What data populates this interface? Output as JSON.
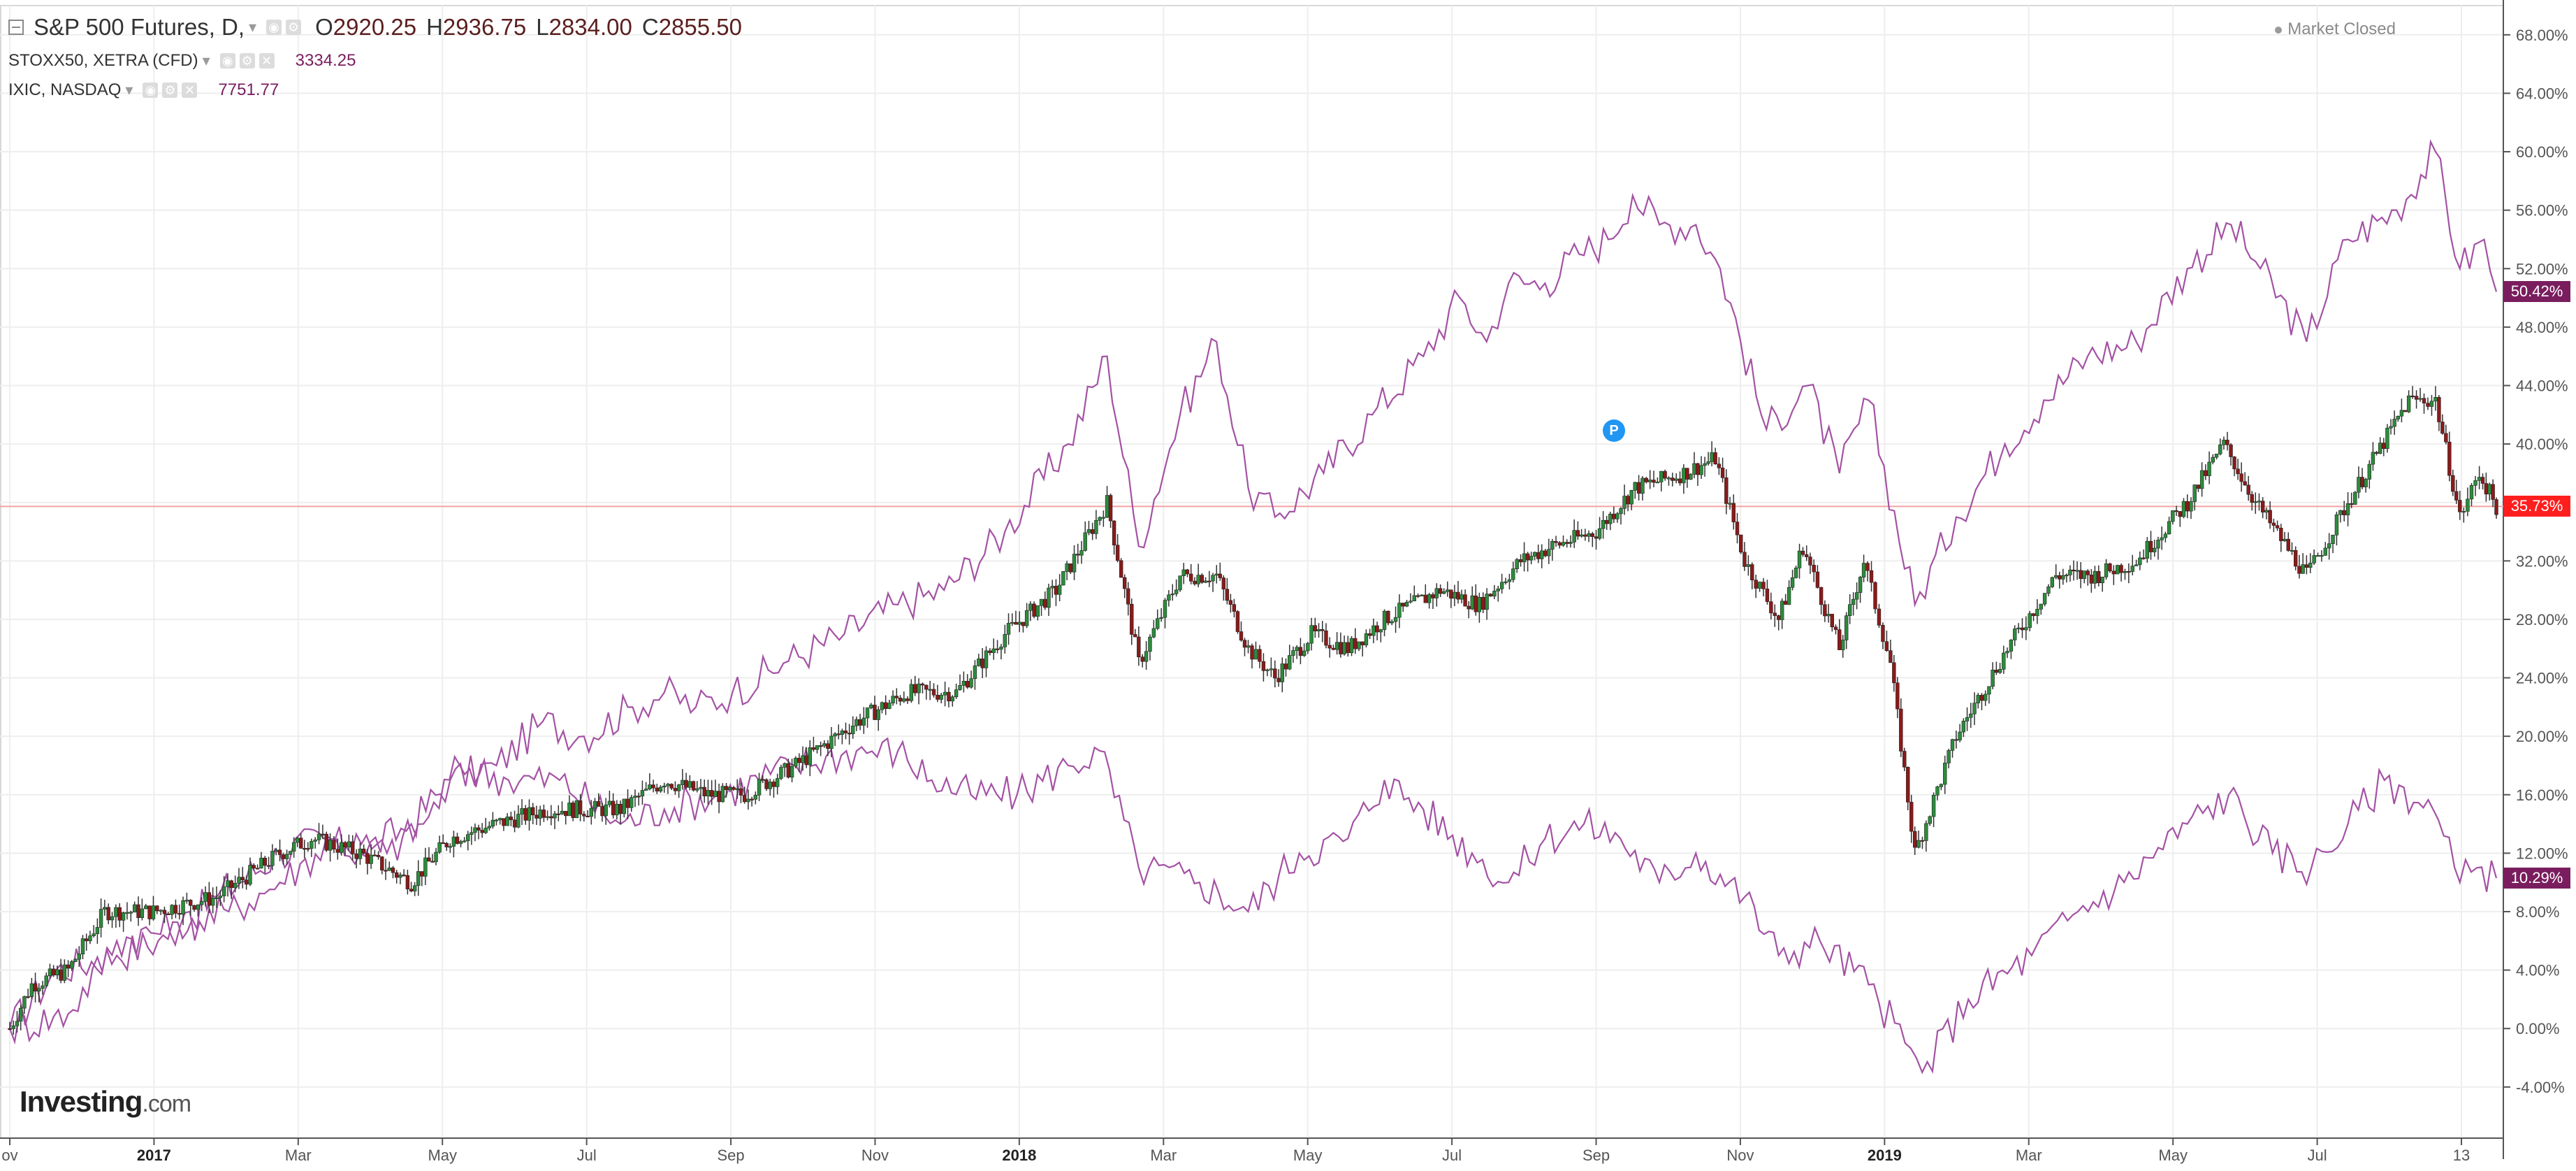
{
  "header": {
    "main": {
      "symbol": "S&P 500 Futures, D,",
      "o_label": "O",
      "o": "2920.25",
      "h_label": "H",
      "h": "2936.75",
      "l_label": "L",
      "l": "2834.00",
      "c_label": "C",
      "c": "2855.50"
    },
    "compare1": {
      "symbol": "STOXX50, XETRA (CFD)",
      "value": "3334.25"
    },
    "compare2": {
      "symbol": "IXIC, NASDAQ",
      "value": "7751.77"
    }
  },
  "status": "Market Closed",
  "logo": {
    "name": "Investing",
    "domain": ".com"
  },
  "event_marker": "P",
  "last_value_tags": [
    {
      "label": "50.42%",
      "color": "#7a1d5e"
    },
    {
      "label": "35.73%",
      "color": "#ff1e1e"
    },
    {
      "label": "10.29%",
      "color": "#7a1d5e"
    }
  ],
  "colors": {
    "up": "#2c8c3c",
    "down": "#8b1a1a",
    "compare": "#a452a4",
    "grid": "#eeeeee",
    "last_price_line": "#f4a2a2"
  },
  "chart_data": {
    "type": "line",
    "candlestick_series": "S&P 500 Futures",
    "ylabel_unit": "%",
    "y_ticks": [
      "68.00%",
      "64.00%",
      "60.00%",
      "56.00%",
      "52.00%",
      "48.00%",
      "44.00%",
      "40.00%",
      "36.00%",
      "32.00%",
      "28.00%",
      "24.00%",
      "20.00%",
      "16.00%",
      "12.00%",
      "8.00%",
      "4.00%",
      "0.00%",
      "-4.00%"
    ],
    "ylim": [
      -7.5,
      70
    ],
    "x_ticks": [
      "ov",
      "2017",
      "Mar",
      "May",
      "Jul",
      "Sep",
      "Nov",
      "2018",
      "Mar",
      "May",
      "Jul",
      "Sep",
      "Nov",
      "2019",
      "Mar",
      "May",
      "Jul",
      "13"
    ],
    "x_tick_bold": [
      "2017",
      "2018",
      "2019"
    ],
    "x_range": [
      "2016-11-01",
      "2019-08-20"
    ],
    "grid": true,
    "series": [
      {
        "name": "IXIC, NASDAQ",
        "points": [
          [
            "2016-11-01",
            0
          ],
          [
            "2016-11-20",
            4
          ],
          [
            "2016-12-15",
            5
          ],
          [
            "2017-01-01",
            6
          ],
          [
            "2017-01-25",
            9
          ],
          [
            "2017-02-20",
            12
          ],
          [
            "2017-03-10",
            13
          ],
          [
            "2017-03-25",
            12
          ],
          [
            "2017-04-15",
            14
          ],
          [
            "2017-05-01",
            17
          ],
          [
            "2017-05-20",
            18
          ],
          [
            "2017-06-08",
            21
          ],
          [
            "2017-06-25",
            20
          ],
          [
            "2017-07-15",
            22
          ],
          [
            "2017-07-28",
            23
          ],
          [
            "2017-08-10",
            22
          ],
          [
            "2017-08-25",
            23
          ],
          [
            "2017-09-15",
            25
          ],
          [
            "2017-10-10",
            27
          ],
          [
            "2017-11-01",
            29
          ],
          [
            "2017-11-20",
            30
          ],
          [
            "2017-12-15",
            34
          ],
          [
            "2018-01-10",
            40
          ],
          [
            "2018-01-26",
            46
          ],
          [
            "2018-02-08",
            33
          ],
          [
            "2018-02-25",
            42
          ],
          [
            "2018-03-12",
            47
          ],
          [
            "2018-03-25",
            37
          ],
          [
            "2018-04-05",
            35
          ],
          [
            "2018-04-25",
            38
          ],
          [
            "2018-05-15",
            42
          ],
          [
            "2018-06-05",
            46
          ],
          [
            "2018-06-20",
            50
          ],
          [
            "2018-07-01",
            47
          ],
          [
            "2018-07-10",
            51
          ],
          [
            "2018-07-25",
            51
          ],
          [
            "2018-08-08",
            53
          ],
          [
            "2018-08-20",
            54
          ],
          [
            "2018-08-30",
            57
          ],
          [
            "2018-09-10",
            55
          ],
          [
            "2018-09-25",
            55
          ],
          [
            "2018-10-05",
            52
          ],
          [
            "2018-10-24",
            41
          ],
          [
            "2018-11-10",
            44
          ],
          [
            "2018-11-23",
            38
          ],
          [
            "2018-12-05",
            43
          ],
          [
            "2018-12-24",
            29
          ],
          [
            "2019-01-10",
            35
          ],
          [
            "2019-01-30",
            40
          ],
          [
            "2019-02-15",
            43
          ],
          [
            "2019-03-05",
            46
          ],
          [
            "2019-03-25",
            47
          ],
          [
            "2019-04-15",
            52
          ],
          [
            "2019-05-03",
            55
          ],
          [
            "2019-05-15",
            52
          ],
          [
            "2019-06-03",
            47
          ],
          [
            "2019-06-20",
            54
          ],
          [
            "2019-07-10",
            56
          ],
          [
            "2019-07-26",
            60
          ],
          [
            "2019-08-05",
            52
          ],
          [
            "2019-08-15",
            54
          ],
          [
            "2019-08-20",
            50.42
          ]
        ]
      },
      {
        "name": "STOXX50, XETRA (CFD)",
        "points": [
          [
            "2016-11-01",
            0
          ],
          [
            "2016-11-25",
            1
          ],
          [
            "2016-12-15",
            6
          ],
          [
            "2017-01-10",
            7
          ],
          [
            "2017-01-30",
            8
          ],
          [
            "2017-02-20",
            10
          ],
          [
            "2017-03-15",
            13
          ],
          [
            "2017-04-05",
            12
          ],
          [
            "2017-04-20",
            14
          ],
          [
            "2017-05-05",
            18
          ],
          [
            "2017-05-25",
            17
          ],
          [
            "2017-06-15",
            17
          ],
          [
            "2017-07-10",
            14
          ],
          [
            "2017-07-28",
            15
          ],
          [
            "2017-08-20",
            16
          ],
          [
            "2017-09-20",
            18
          ],
          [
            "2017-10-15",
            19
          ],
          [
            "2017-11-01",
            19
          ],
          [
            "2017-11-15",
            17
          ],
          [
            "2017-12-01",
            16
          ],
          [
            "2017-12-20",
            16
          ],
          [
            "2018-01-10",
            18
          ],
          [
            "2018-01-23",
            19
          ],
          [
            "2018-02-08",
            11
          ],
          [
            "2018-03-05",
            10
          ],
          [
            "2018-03-25",
            8
          ],
          [
            "2018-04-15",
            12
          ],
          [
            "2018-05-05",
            13
          ],
          [
            "2018-05-20",
            17
          ],
          [
            "2018-06-05",
            15
          ],
          [
            "2018-06-25",
            12
          ],
          [
            "2018-07-10",
            10
          ],
          [
            "2018-07-25",
            13
          ],
          [
            "2018-08-10",
            14
          ],
          [
            "2018-08-25",
            13
          ],
          [
            "2018-09-10",
            10
          ],
          [
            "2018-09-25",
            12
          ],
          [
            "2018-10-15",
            9
          ],
          [
            "2018-10-29",
            5
          ],
          [
            "2018-11-15",
            6
          ],
          [
            "2018-12-05",
            3
          ],
          [
            "2018-12-20",
            -1
          ],
          [
            "2018-12-27",
            -3
          ],
          [
            "2019-01-15",
            2
          ],
          [
            "2019-02-10",
            5
          ],
          [
            "2019-03-01",
            8
          ],
          [
            "2019-03-20",
            10
          ],
          [
            "2019-04-15",
            14
          ],
          [
            "2019-05-02",
            16
          ],
          [
            "2019-05-20",
            12
          ],
          [
            "2019-06-05",
            11
          ],
          [
            "2019-06-20",
            14
          ],
          [
            "2019-07-05",
            17
          ],
          [
            "2019-07-25",
            15
          ],
          [
            "2019-08-05",
            10
          ],
          [
            "2019-08-12",
            11
          ],
          [
            "2019-08-20",
            10.29
          ]
        ]
      },
      {
        "name": "S&P 500 Futures",
        "render": "candlestick",
        "points": [
          [
            "2016-11-01",
            0
          ],
          [
            "2016-11-10",
            3
          ],
          [
            "2016-11-25",
            4
          ],
          [
            "2016-12-10",
            8
          ],
          [
            "2016-12-30",
            8
          ],
          [
            "2017-01-25",
            9
          ],
          [
            "2017-02-20",
            12
          ],
          [
            "2017-03-05",
            13
          ],
          [
            "2017-03-25",
            12
          ],
          [
            "2017-04-15",
            10
          ],
          [
            "2017-05-01",
            13
          ],
          [
            "2017-05-20",
            14
          ],
          [
            "2017-06-10",
            15
          ],
          [
            "2017-06-25",
            15
          ],
          [
            "2017-07-10",
            15
          ],
          [
            "2017-07-28",
            17
          ],
          [
            "2017-08-15",
            16
          ],
          [
            "2017-08-30",
            16
          ],
          [
            "2017-09-20",
            18
          ],
          [
            "2017-10-15",
            21
          ],
          [
            "2017-11-05",
            23
          ],
          [
            "2017-11-25",
            23
          ],
          [
            "2017-12-15",
            27
          ],
          [
            "2018-01-05",
            30
          ],
          [
            "2018-01-26",
            36
          ],
          [
            "2018-02-08",
            25
          ],
          [
            "2018-02-25",
            31
          ],
          [
            "2018-03-12",
            31
          ],
          [
            "2018-03-25",
            26
          ],
          [
            "2018-04-05",
            24
          ],
          [
            "2018-04-20",
            27
          ],
          [
            "2018-05-05",
            26
          ],
          [
            "2018-05-20",
            28
          ],
          [
            "2018-06-12",
            30
          ],
          [
            "2018-06-28",
            29
          ],
          [
            "2018-07-15",
            32
          ],
          [
            "2018-07-28",
            33
          ],
          [
            "2018-08-15",
            34
          ],
          [
            "2018-08-31",
            37
          ],
          [
            "2018-09-20",
            38
          ],
          [
            "2018-10-03",
            39
          ],
          [
            "2018-10-15",
            32
          ],
          [
            "2018-10-29",
            28
          ],
          [
            "2018-11-08",
            33
          ],
          [
            "2018-11-23",
            26
          ],
          [
            "2018-12-03",
            32
          ],
          [
            "2018-12-14",
            25
          ],
          [
            "2018-12-24",
            12
          ],
          [
            "2019-01-10",
            20
          ],
          [
            "2019-01-31",
            26
          ],
          [
            "2019-02-20",
            31
          ],
          [
            "2019-03-08",
            31
          ],
          [
            "2019-03-25",
            32
          ],
          [
            "2019-04-15",
            36
          ],
          [
            "2019-04-30",
            40
          ],
          [
            "2019-05-13",
            36
          ],
          [
            "2019-06-03",
            31
          ],
          [
            "2019-06-20",
            36
          ],
          [
            "2019-07-15",
            43
          ],
          [
            "2019-07-26",
            43
          ],
          [
            "2019-08-05",
            35
          ],
          [
            "2019-08-13",
            38
          ],
          [
            "2019-08-20",
            35.73
          ]
        ]
      }
    ],
    "last_price_line": 35.73
  }
}
